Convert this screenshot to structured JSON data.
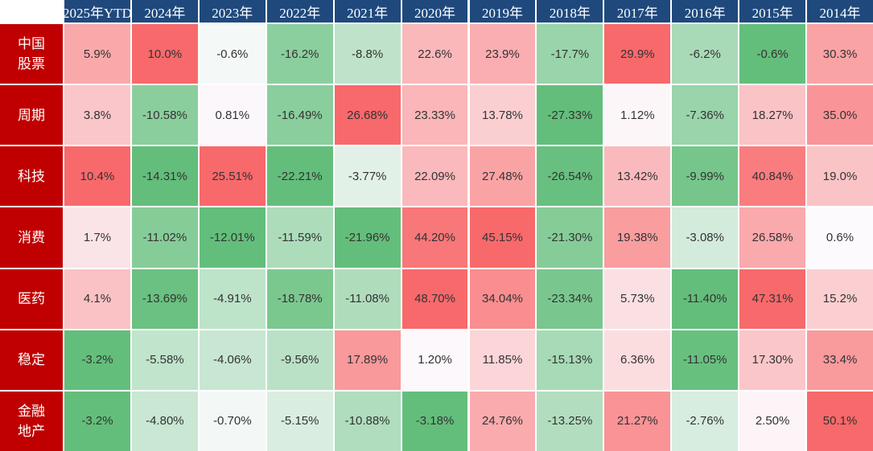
{
  "chart_data": {
    "type": "heatmap",
    "columns": [
      "2025年YTD",
      "2024年",
      "2023年",
      "2022年",
      "2021年",
      "2020年",
      "2019年",
      "2018年",
      "2017年",
      "2016年",
      "2015年",
      "2014年"
    ],
    "rows": [
      {
        "label": "中国\n股票",
        "values": [
          5.9,
          10.0,
          -0.6,
          -16.2,
          -8.8,
          22.6,
          23.9,
          -17.7,
          29.9,
          -6.2,
          -0.6,
          30.3
        ],
        "labels": [
          "5.9%",
          "10.0%",
          "-0.6%",
          "-16.2%",
          "-8.8%",
          "22.6%",
          "23.9%",
          "-17.7%",
          "29.9%",
          "-6.2%",
          "-0.6%",
          "30.3%"
        ]
      },
      {
        "label": "周期",
        "values": [
          3.8,
          -10.58,
          0.81,
          -16.49,
          26.68,
          23.33,
          13.78,
          -27.33,
          1.12,
          -7.36,
          18.27,
          35.0
        ],
        "labels": [
          "3.8%",
          "-10.58%",
          "0.81%",
          "-16.49%",
          "26.68%",
          "23.33%",
          "13.78%",
          "-27.33%",
          "1.12%",
          "-7.36%",
          "18.27%",
          "35.0%"
        ]
      },
      {
        "label": "科技",
        "values": [
          10.4,
          -14.31,
          25.51,
          -22.21,
          -3.77,
          22.09,
          27.48,
          -26.54,
          13.42,
          -9.99,
          40.84,
          19.0
        ],
        "labels": [
          "10.4%",
          "-14.31%",
          "25.51%",
          "-22.21%",
          "-3.77%",
          "22.09%",
          "27.48%",
          "-26.54%",
          "13.42%",
          "-9.99%",
          "40.84%",
          "19.0%"
        ]
      },
      {
        "label": "消费",
        "values": [
          1.7,
          -11.02,
          -12.01,
          -11.59,
          -21.96,
          44.2,
          45.15,
          -21.3,
          19.38,
          -3.08,
          26.58,
          0.6
        ],
        "labels": [
          "1.7%",
          "-11.02%",
          "-12.01%",
          "-11.59%",
          "-21.96%",
          "44.20%",
          "45.15%",
          "-21.30%",
          "19.38%",
          "-3.08%",
          "26.58%",
          "0.6%"
        ]
      },
      {
        "label": "医药",
        "values": [
          4.1,
          -13.69,
          -4.91,
          -18.78,
          -11.08,
          48.7,
          34.04,
          -23.34,
          5.73,
          -11.4,
          47.31,
          15.2
        ],
        "labels": [
          "4.1%",
          "-13.69%",
          "-4.91%",
          "-18.78%",
          "-11.08%",
          "48.70%",
          "34.04%",
          "-23.34%",
          "5.73%",
          "-11.40%",
          "47.31%",
          "15.2%"
        ]
      },
      {
        "label": "稳定",
        "values": [
          -3.2,
          -5.58,
          -4.06,
          -9.56,
          17.89,
          1.2,
          11.85,
          -15.13,
          6.36,
          -11.05,
          17.3,
          33.4
        ],
        "labels": [
          "-3.2%",
          "-5.58%",
          "-4.06%",
          "-9.56%",
          "17.89%",
          "1.20%",
          "11.85%",
          "-15.13%",
          "6.36%",
          "-11.05%",
          "17.30%",
          "33.4%"
        ]
      },
      {
        "label": "金融\n地产",
        "values": [
          -3.2,
          -4.8,
          -0.7,
          -5.15,
          -10.88,
          -3.18,
          24.76,
          -13.25,
          21.27,
          -2.76,
          2.5,
          50.1
        ],
        "labels": [
          "-3.2%",
          "-4.80%",
          "-0.70%",
          "-5.15%",
          "-10.88%",
          "-3.18%",
          "24.76%",
          "-13.25%",
          "21.27%",
          "-2.76%",
          "2.50%",
          "50.1%"
        ]
      }
    ],
    "colors": {
      "header_bg": "#1F497D",
      "row_label_bg": "#C00000",
      "positive_max": "#F8696B",
      "negative_max": "#63BE7B",
      "neutral": "#FCFCFF"
    }
  }
}
